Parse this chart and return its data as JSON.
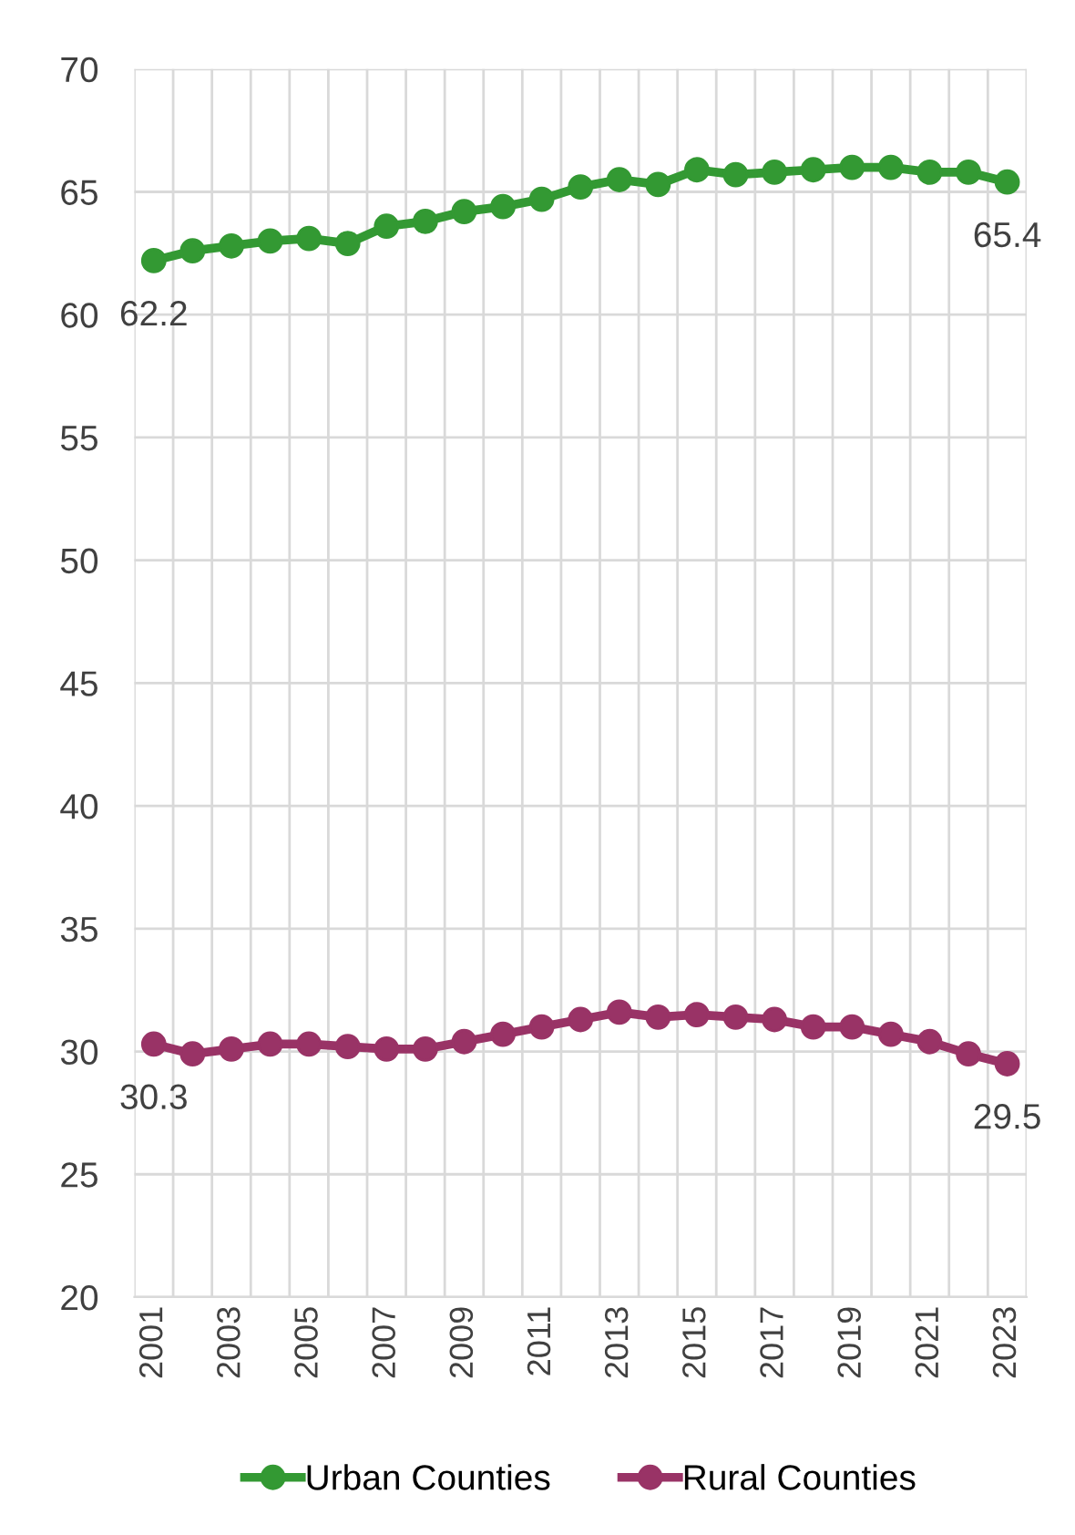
{
  "chart_data": {
    "type": "line",
    "categories": [
      "2001",
      null,
      "2003",
      null,
      "2005",
      null,
      "2007",
      null,
      "2009",
      null,
      "2011",
      null,
      "2013",
      null,
      "2015",
      null,
      "2017",
      null,
      "2019",
      null,
      "2021",
      null,
      "2023"
    ],
    "series": [
      {
        "name": "Urban Counties",
        "color": "#339933",
        "values": [
          62.2,
          62.6,
          62.8,
          63.0,
          63.1,
          62.9,
          63.6,
          63.8,
          64.2,
          64.4,
          64.7,
          65.2,
          65.5,
          65.3,
          65.9,
          65.7,
          65.8,
          65.9,
          66.0,
          66.0,
          65.8,
          65.8,
          65.4
        ],
        "value_labels": [
          "62.2",
          null,
          null,
          null,
          null,
          null,
          null,
          null,
          null,
          null,
          null,
          null,
          null,
          null,
          null,
          null,
          null,
          null,
          null,
          null,
          null,
          null,
          "65.4"
        ]
      },
      {
        "name": "Rural Counties",
        "color": "#993366",
        "values": [
          30.3,
          29.9,
          30.1,
          30.3,
          30.3,
          30.2,
          30.1,
          30.1,
          30.4,
          30.7,
          31.0,
          31.3,
          31.6,
          31.4,
          31.5,
          31.4,
          31.3,
          31.0,
          31.0,
          30.7,
          30.4,
          29.9,
          29.5
        ],
        "value_labels": [
          "30.3",
          null,
          null,
          null,
          null,
          null,
          null,
          null,
          null,
          null,
          null,
          null,
          null,
          null,
          null,
          null,
          null,
          null,
          null,
          null,
          null,
          null,
          "29.5"
        ]
      }
    ],
    "ylim": [
      20,
      70
    ],
    "yticks": [
      20,
      25,
      30,
      35,
      40,
      45,
      50,
      55,
      60,
      65,
      70
    ],
    "grid": true,
    "legend": "bottom",
    "marker": "circle",
    "line_style": "solid"
  }
}
